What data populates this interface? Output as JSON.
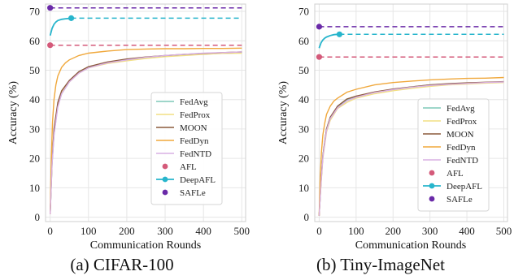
{
  "chart_data": [
    {
      "type": "line",
      "caption": "(a) CIFAR-100",
      "title": "",
      "xlabel": "Communication Rounds",
      "ylabel": "Accuracy (%)",
      "xlim": [
        -12,
        510
      ],
      "ylim": [
        -1.5,
        72.5
      ],
      "xticks": [
        0,
        100,
        200,
        300,
        400,
        500
      ],
      "yticks": [
        0,
        10,
        20,
        30,
        40,
        50,
        60,
        70
      ],
      "grid": true,
      "legend_position": "lower-right",
      "series": [
        {
          "name": "FedAvg",
          "color": "#7fc8b8",
          "style": "line",
          "x": [
            0,
            5,
            10,
            20,
            30,
            50,
            75,
            100,
            150,
            200,
            250,
            300,
            350,
            400,
            450,
            500
          ],
          "y": [
            1,
            18,
            28,
            38,
            42,
            46,
            49.5,
            51,
            52.5,
            53.5,
            54.2,
            54.8,
            55.2,
            55.5,
            55.8,
            56
          ]
        },
        {
          "name": "FedProx",
          "color": "#f2df84",
          "style": "line",
          "x": [
            0,
            5,
            10,
            20,
            30,
            50,
            75,
            100,
            150,
            200,
            250,
            300,
            350,
            400,
            450,
            500
          ],
          "y": [
            1,
            19,
            29,
            38.5,
            42.5,
            46,
            49,
            50.8,
            52.3,
            53.2,
            54,
            54.6,
            55,
            55.4,
            55.7,
            55.8
          ]
        },
        {
          "name": "MOON",
          "color": "#8c5a3c",
          "style": "line",
          "x": [
            0,
            5,
            10,
            20,
            30,
            50,
            75,
            100,
            150,
            200,
            250,
            300,
            350,
            400,
            450,
            500
          ],
          "y": [
            1,
            19,
            30,
            39,
            43,
            46.5,
            49.5,
            51.2,
            52.8,
            53.8,
            54.5,
            55,
            55.4,
            55.7,
            56,
            56.2
          ]
        },
        {
          "name": "FedDyn",
          "color": "#f0a83c",
          "style": "line",
          "x": [
            0,
            3,
            6,
            10,
            15,
            20,
            30,
            40,
            50,
            75,
            100,
            150,
            200,
            250,
            300,
            350,
            400,
            450,
            500
          ],
          "y": [
            1,
            20,
            32,
            40,
            45,
            48,
            51,
            52.5,
            53.5,
            55,
            55.8,
            56.5,
            57,
            57.2,
            57.3,
            57.3,
            57.4,
            57.4,
            57.5
          ]
        },
        {
          "name": "FedNTD",
          "color": "#d9b0e4",
          "style": "line",
          "x": [
            0,
            5,
            10,
            20,
            30,
            50,
            75,
            100,
            150,
            200,
            250,
            300,
            350,
            400,
            450,
            500
          ],
          "y": [
            1,
            18,
            28,
            37.5,
            42,
            46,
            49,
            50.8,
            52.5,
            53.5,
            54.4,
            55,
            55.4,
            55.8,
            56,
            56.2
          ]
        },
        {
          "name": "AFL",
          "color": "#d45a7a",
          "style": "point",
          "x": [
            0
          ],
          "y": [
            58.5
          ],
          "extend_to": 500
        },
        {
          "name": "DeepAFL",
          "color": "#27b5cc",
          "style": "line-point",
          "x": [
            0,
            5,
            10,
            15,
            20,
            30,
            40,
            50,
            55
          ],
          "y": [
            61.8,
            64.2,
            65.6,
            66.4,
            66.9,
            67.3,
            67.5,
            67.6,
            67.7
          ],
          "extend_to": 500
        },
        {
          "name": "SAFLe",
          "color": "#6a2aa8",
          "style": "point",
          "x": [
            0
          ],
          "y": [
            71.2
          ],
          "extend_to": 500
        }
      ]
    },
    {
      "type": "line",
      "caption": "(b) Tiny-ImageNet",
      "title": "",
      "xlabel": "Communication Rounds",
      "ylabel": "Accuracy (%)",
      "xlim": [
        -12,
        510
      ],
      "ylim": [
        -1.5,
        72.5
      ],
      "xticks": [
        0,
        100,
        200,
        300,
        400,
        500
      ],
      "yticks": [
        0,
        10,
        20,
        30,
        40,
        50,
        60,
        70
      ],
      "grid": true,
      "legend_position": "lower-right",
      "series": [
        {
          "name": "FedAvg",
          "color": "#7fc8b8",
          "style": "line",
          "x": [
            0,
            5,
            10,
            20,
            30,
            50,
            75,
            100,
            150,
            200,
            250,
            300,
            350,
            400,
            450,
            500
          ],
          "y": [
            0.5,
            12,
            21,
            30,
            34,
            37.5,
            40,
            41,
            42.5,
            43.5,
            44.3,
            45,
            45.3,
            45.6,
            45.8,
            46
          ]
        },
        {
          "name": "FedProx",
          "color": "#f2df84",
          "style": "line",
          "x": [
            0,
            5,
            10,
            20,
            30,
            50,
            75,
            100,
            150,
            200,
            250,
            300,
            350,
            400,
            450,
            500
          ],
          "y": [
            0.5,
            11,
            20,
            29,
            33,
            37,
            39,
            40.5,
            42,
            43,
            43.8,
            44.5,
            45,
            45.3,
            45.6,
            45.8
          ]
        },
        {
          "name": "MOON",
          "color": "#8c5a3c",
          "style": "line",
          "x": [
            0,
            5,
            10,
            20,
            30,
            50,
            75,
            100,
            150,
            200,
            250,
            300,
            350,
            400,
            450,
            500
          ],
          "y": [
            0.5,
            12,
            21,
            30,
            34,
            37.8,
            40.2,
            41.2,
            42.6,
            43.6,
            44.3,
            45,
            45.4,
            45.7,
            45.9,
            46.1
          ]
        },
        {
          "name": "FedDyn",
          "color": "#f0a83c",
          "style": "line",
          "x": [
            0,
            3,
            6,
            10,
            15,
            20,
            30,
            40,
            50,
            75,
            100,
            150,
            200,
            250,
            300,
            350,
            400,
            450,
            500
          ],
          "y": [
            0.5,
            14,
            22,
            28,
            32,
            35,
            37.8,
            39.5,
            40.5,
            42.5,
            43.5,
            45,
            45.8,
            46.3,
            46.7,
            47,
            47.2,
            47.3,
            47.5
          ]
        },
        {
          "name": "FedNTD",
          "color": "#d9b0e4",
          "style": "line",
          "x": [
            0,
            5,
            10,
            20,
            30,
            50,
            75,
            100,
            150,
            200,
            250,
            300,
            350,
            400,
            450,
            500
          ],
          "y": [
            0.5,
            11.5,
            20.5,
            29.5,
            33.5,
            37.2,
            39.6,
            40.8,
            42.4,
            43.4,
            44.2,
            44.8,
            45.2,
            45.5,
            45.8,
            46
          ]
        },
        {
          "name": "AFL",
          "color": "#d45a7a",
          "style": "point",
          "x": [
            0
          ],
          "y": [
            54.5
          ],
          "extend_to": 500
        },
        {
          "name": "DeepAFL",
          "color": "#27b5cc",
          "style": "line-point",
          "x": [
            0,
            5,
            10,
            15,
            20,
            30,
            40,
            50,
            55
          ],
          "y": [
            57.5,
            59.3,
            60.3,
            60.9,
            61.3,
            61.8,
            62.1,
            62.2,
            62.2
          ],
          "extend_to": 500
        },
        {
          "name": "SAFLe",
          "color": "#6a2aa8",
          "style": "point",
          "x": [
            0
          ],
          "y": [
            64.8
          ],
          "extend_to": 500
        }
      ]
    }
  ]
}
